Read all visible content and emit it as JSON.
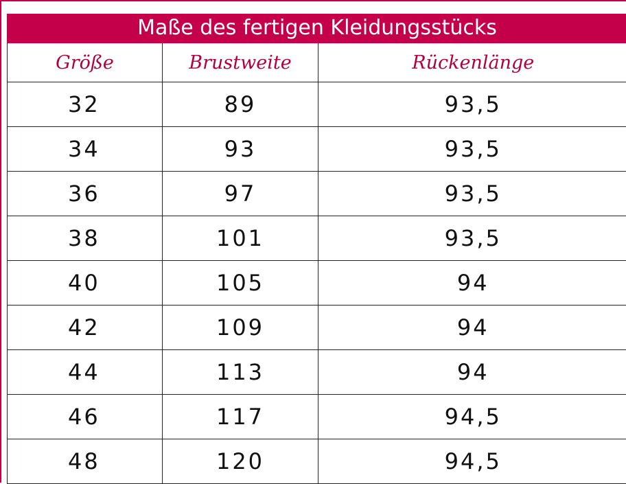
{
  "title": "Maße des fertigen Kleidungsstücks",
  "columns": [
    "Größe",
    "Brustweite",
    "Rückenlänge"
  ],
  "rows": [
    [
      "32",
      "89",
      "93,5"
    ],
    [
      "34",
      "93",
      "93,5"
    ],
    [
      "36",
      "97",
      "93,5"
    ],
    [
      "38",
      "101",
      "93,5"
    ],
    [
      "40",
      "105",
      "94"
    ],
    [
      "42",
      "109",
      "94"
    ],
    [
      "44",
      "113",
      "94"
    ],
    [
      "46",
      "117",
      "94,5"
    ],
    [
      "48",
      "120",
      "94,5"
    ]
  ],
  "colors": {
    "accent": "#c30049",
    "header_text": "#b0003f",
    "title_text": "#ffffff"
  }
}
